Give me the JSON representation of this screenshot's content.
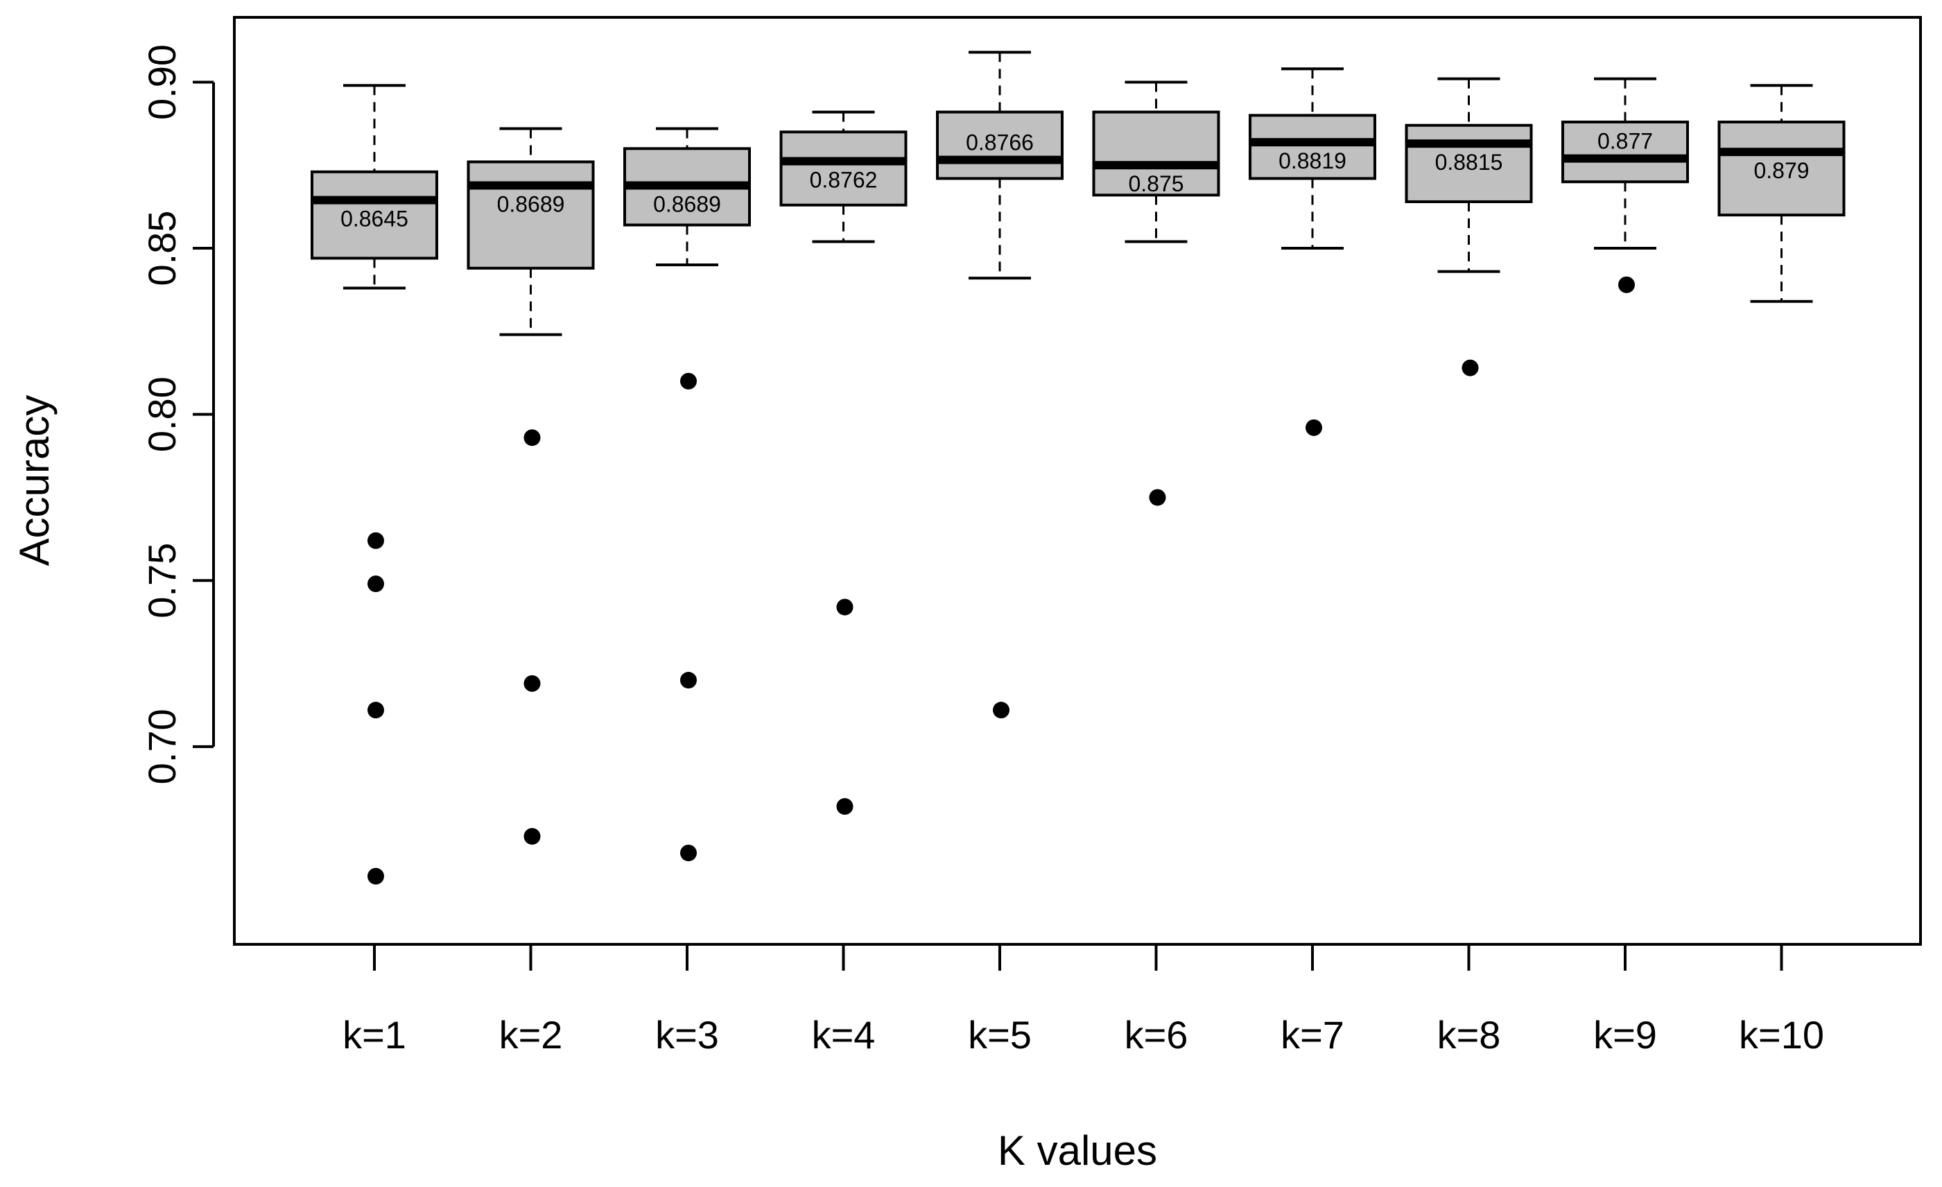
{
  "chart_data": {
    "type": "boxplot",
    "title": "",
    "xlabel": "K values",
    "ylabel": "Accuracy",
    "ylim": [
      0.6405,
      0.9195
    ],
    "yticks": [
      0.7,
      0.75,
      0.8,
      0.85,
      0.9
    ],
    "ytick_labels": [
      "0.70",
      "0.75",
      "0.80",
      "0.85",
      "0.90"
    ],
    "grid": false,
    "colors": {
      "box_fill": "#c0c0c0",
      "stroke": "#000000",
      "background": "#ffffff"
    },
    "categories": [
      "k=1",
      "k=2",
      "k=3",
      "k=4",
      "k=5",
      "k=6",
      "k=7",
      "k=8",
      "k=9",
      "k=10"
    ],
    "boxes": [
      {
        "label": "k=1",
        "whisker_low": 0.838,
        "q1": 0.847,
        "median": 0.8645,
        "q3": 0.873,
        "whisker_high": 0.899,
        "median_label": "0.8645",
        "outliers": [
          0.762,
          0.749,
          0.711,
          0.661
        ]
      },
      {
        "label": "k=2",
        "whisker_low": 0.824,
        "q1": 0.844,
        "median": 0.8689,
        "q3": 0.876,
        "whisker_high": 0.886,
        "median_label": "0.8689",
        "outliers": [
          0.793,
          0.719,
          0.673
        ]
      },
      {
        "label": "k=3",
        "whisker_low": 0.845,
        "q1": 0.857,
        "median": 0.8689,
        "q3": 0.88,
        "whisker_high": 0.886,
        "median_label": "0.8689",
        "outliers": [
          0.81,
          0.72,
          0.668
        ]
      },
      {
        "label": "k=4",
        "whisker_low": 0.852,
        "q1": 0.863,
        "median": 0.8762,
        "q3": 0.885,
        "whisker_high": 0.891,
        "median_label": "0.8762",
        "outliers": [
          0.742,
          0.682
        ]
      },
      {
        "label": "k=5",
        "whisker_low": 0.841,
        "q1": 0.871,
        "median": 0.8766,
        "q3": 0.891,
        "whisker_high": 0.909,
        "median_label": "0.8766",
        "outliers": [
          0.711
        ]
      },
      {
        "label": "k=6",
        "whisker_low": 0.852,
        "q1": 0.866,
        "median": 0.875,
        "q3": 0.891,
        "whisker_high": 0.9,
        "median_label": "0.875",
        "outliers": [
          0.775
        ]
      },
      {
        "label": "k=7",
        "whisker_low": 0.85,
        "q1": 0.871,
        "median": 0.8819,
        "q3": 0.89,
        "whisker_high": 0.904,
        "median_label": "0.8819",
        "outliers": [
          0.796
        ]
      },
      {
        "label": "k=8",
        "whisker_low": 0.843,
        "q1": 0.864,
        "median": 0.8815,
        "q3": 0.887,
        "whisker_high": 0.901,
        "median_label": "0.8815",
        "outliers": [
          0.814
        ]
      },
      {
        "label": "k=9",
        "whisker_low": 0.85,
        "q1": 0.87,
        "median": 0.877,
        "q3": 0.888,
        "whisker_high": 0.901,
        "median_label": "0.877",
        "outliers": [
          0.839
        ]
      },
      {
        "label": "k=10",
        "whisker_low": 0.834,
        "q1": 0.86,
        "median": 0.879,
        "q3": 0.888,
        "whisker_high": 0.899,
        "median_label": "0.879",
        "outliers": []
      }
    ]
  }
}
